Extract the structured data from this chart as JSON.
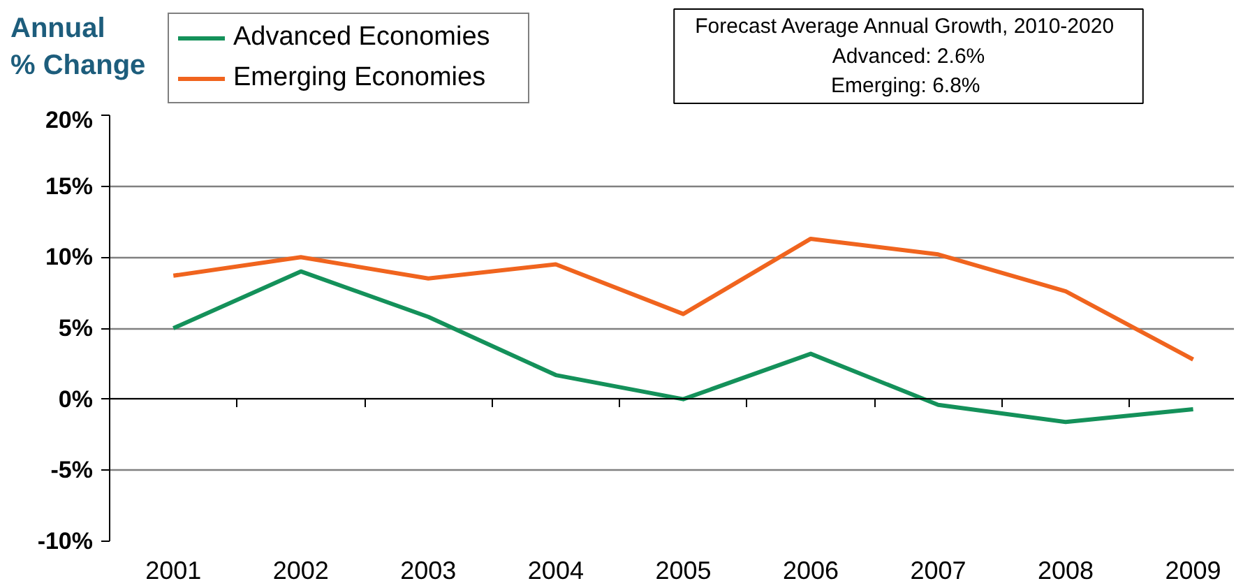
{
  "chart_data": {
    "type": "line",
    "ylabel": "Annual\n% Change",
    "categories": [
      "2001",
      "2002",
      "2003",
      "2004",
      "2005",
      "2006",
      "2007",
      "2008",
      "2009"
    ],
    "series": [
      {
        "name": "Advanced Economies",
        "color": "#14915a",
        "values": [
          5.0,
          9.0,
          5.8,
          1.7,
          0.0,
          3.2,
          -0.4,
          -1.6,
          -0.7
        ]
      },
      {
        "name": "Emerging Economies",
        "color": "#f0641e",
        "values": [
          8.7,
          10.0,
          8.5,
          9.5,
          6.0,
          11.3,
          10.2,
          7.6,
          2.8
        ]
      }
    ],
    "ylim": [
      -10,
      20
    ],
    "yticks": [
      {
        "value": -10,
        "label": "-10%"
      },
      {
        "value": -5,
        "label": "-5%"
      },
      {
        "value": 0,
        "label": "0%"
      },
      {
        "value": 5,
        "label": "5%"
      },
      {
        "value": 10,
        "label": "10%"
      },
      {
        "value": 15,
        "label": "15%"
      },
      {
        "value": 20,
        "label": "20%"
      }
    ],
    "grid": "y",
    "legend": "top left",
    "line_style": "solid",
    "annotations": [
      "Forecast Average Annual Growth,  2010-2020",
      "Advanced: 2.6%",
      "Emerging:  6.8%"
    ]
  }
}
